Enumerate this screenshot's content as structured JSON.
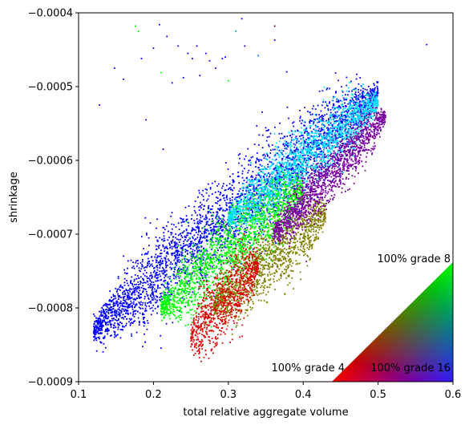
{
  "chart_data": {
    "type": "scatter",
    "xlabel": "total relative aggregate volume",
    "ylabel": "shrinkage",
    "xlim": [
      0.1,
      0.6
    ],
    "ylim": [
      -0.0009,
      -0.0004
    ],
    "xticks": [
      0.1,
      0.2,
      0.3,
      0.4,
      0.5,
      0.6
    ],
    "xtick_labels": [
      "0.1",
      "0.2",
      "0.3",
      "0.4",
      "0.5",
      "0.6"
    ],
    "yticks": [
      -0.0009,
      -0.0008,
      -0.0007,
      -0.0006,
      -0.0005,
      -0.0004
    ],
    "ytick_labels": [
      "−0.0009",
      "−0.0008",
      "−0.0007",
      "−0.0006",
      "−0.0005",
      "−0.0004"
    ],
    "grid": false,
    "color_legend": {
      "shape": "triangle",
      "placement": "bottom-right",
      "corners": [
        {
          "label": "100% grade 4",
          "color": "#ff0000"
        },
        {
          "label": "100% grade 8",
          "color": "#00ff00"
        },
        {
          "label": "100% grade 16",
          "color": "#0000ff"
        }
      ]
    },
    "series": [
      {
        "color": "#0000ff",
        "trend": {
          "x_start": 0.12,
          "y_start": -0.00083,
          "x_end": 0.5,
          "y_end": -0.00051
        },
        "x_range": [
          0.12,
          0.5
        ],
        "spread_y": 2.2e-05
      },
      {
        "color": "#00e0ff",
        "trend": {
          "x_start": 0.3,
          "y_start": -0.00068,
          "x_end": 0.5,
          "y_end": -0.00052
        },
        "x_range": [
          0.3,
          0.5
        ],
        "spread_y": 1.5e-05
      },
      {
        "color": "#00ff00",
        "trend": {
          "x_start": 0.21,
          "y_start": -0.0008,
          "x_end": 0.4,
          "y_end": -0.00064
        },
        "x_range": [
          0.21,
          0.4
        ],
        "spread_y": 1.8e-05
      },
      {
        "color": "#808000",
        "trend": {
          "x_start": 0.28,
          "y_start": -0.0008,
          "x_end": 0.43,
          "y_end": -0.00067
        },
        "x_range": [
          0.28,
          0.43
        ],
        "spread_y": 1.7e-05
      },
      {
        "color": "#e00000",
        "trend": {
          "x_start": 0.25,
          "y_start": -0.00084,
          "x_end": 0.34,
          "y_end": -0.00074
        },
        "x_range": [
          0.25,
          0.34
        ],
        "spread_y": 1.8e-05
      },
      {
        "color": "#7a00a0",
        "trend": {
          "x_start": 0.36,
          "y_start": -0.0007,
          "x_end": 0.51,
          "y_end": -0.00054
        },
        "x_range": [
          0.36,
          0.51
        ],
        "spread_y": 1.3e-05
      }
    ],
    "outliers": [
      {
        "x": 0.128,
        "y": -0.000525,
        "color": "#0000ff"
      },
      {
        "x": 0.148,
        "y": -0.000475,
        "color": "#0000ff"
      },
      {
        "x": 0.16,
        "y": -0.00049,
        "color": "#0000ff"
      },
      {
        "x": 0.176,
        "y": -0.000418,
        "color": "#00ff00"
      },
      {
        "x": 0.18,
        "y": -0.000425,
        "color": "#00ff00"
      },
      {
        "x": 0.184,
        "y": -0.000462,
        "color": "#0000ff"
      },
      {
        "x": 0.19,
        "y": -0.000545,
        "color": "#0000ff"
      },
      {
        "x": 0.2,
        "y": -0.000448,
        "color": "#0000ff"
      },
      {
        "x": 0.208,
        "y": -0.000416,
        "color": "#0000ff"
      },
      {
        "x": 0.21,
        "y": -0.000481,
        "color": "#00ff00"
      },
      {
        "x": 0.213,
        "y": -0.000585,
        "color": "#0000ff"
      },
      {
        "x": 0.218,
        "y": -0.000432,
        "color": "#0000ff"
      },
      {
        "x": 0.225,
        "y": -0.000495,
        "color": "#0000ff"
      },
      {
        "x": 0.233,
        "y": -0.000445,
        "color": "#0000ff"
      },
      {
        "x": 0.24,
        "y": -0.000488,
        "color": "#0000ff"
      },
      {
        "x": 0.246,
        "y": -0.000455,
        "color": "#0000ff"
      },
      {
        "x": 0.252,
        "y": -0.000462,
        "color": "#0000ff"
      },
      {
        "x": 0.258,
        "y": -0.000445,
        "color": "#0000ff"
      },
      {
        "x": 0.262,
        "y": -0.000485,
        "color": "#0000ff"
      },
      {
        "x": 0.27,
        "y": -0.000455,
        "color": "#0000ff"
      },
      {
        "x": 0.275,
        "y": -0.000465,
        "color": "#0000ff"
      },
      {
        "x": 0.283,
        "y": -0.000475,
        "color": "#0000ff"
      },
      {
        "x": 0.292,
        "y": -0.000462,
        "color": "#0000ff"
      },
      {
        "x": 0.296,
        "y": -0.00046,
        "color": "#0000ff"
      },
      {
        "x": 0.3,
        "y": -0.000492,
        "color": "#00ff00"
      },
      {
        "x": 0.31,
        "y": -0.000425,
        "color": "#00a0ff"
      },
      {
        "x": 0.318,
        "y": -0.000408,
        "color": "#0000ff"
      },
      {
        "x": 0.322,
        "y": -0.000445,
        "color": "#0000ff"
      },
      {
        "x": 0.34,
        "y": -0.000458,
        "color": "#0060ff"
      },
      {
        "x": 0.362,
        "y": -0.000418,
        "color": "#800000"
      },
      {
        "x": 0.362,
        "y": -0.000437,
        "color": "#0000ff"
      },
      {
        "x": 0.378,
        "y": -0.00048,
        "color": "#0000ff"
      },
      {
        "x": 0.565,
        "y": -0.000443,
        "color": "#0000ff"
      }
    ]
  }
}
